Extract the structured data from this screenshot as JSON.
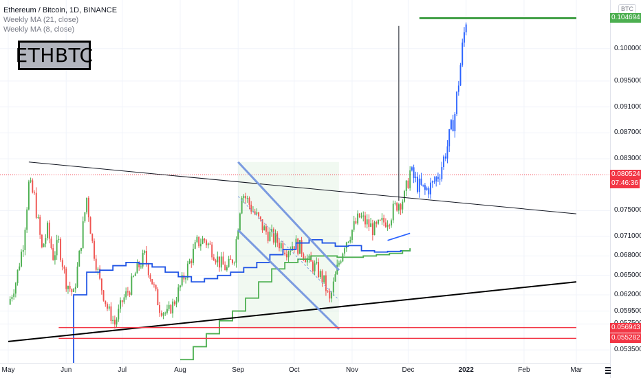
{
  "legend": {
    "title": "Ethereum / Bitcoin, 1D, BINANCE",
    "ma21": "Weekly MA (21, close)",
    "ma8": "Weekly MA (8, close)"
  },
  "symbol_label": "ETHBTC",
  "unit_label": "BTC",
  "price_tags": {
    "top": {
      "value": "0.104694",
      "color": "#4caf50"
    },
    "current": {
      "value": "0.080524",
      "color": "#f23645"
    },
    "countdown": "07:46:36",
    "support1": {
      "value": "0.056943",
      "color": "#f23645"
    },
    "support2": {
      "value": "0.055282",
      "color": "#f23645"
    }
  },
  "colors": {
    "up": "#26a69a",
    "up_candle": "#4caf50",
    "down": "#ef5350",
    "ma21": "#1e53e5",
    "ma8": "#4caf50",
    "channel": "#7b9be0",
    "trendline": "#000000",
    "rect": "#4caf50",
    "projection": "#2962ff"
  },
  "chart_data": {
    "type": "candlestick",
    "title": "Ethereum / Bitcoin, 1D, BINANCE",
    "ylim": [
      0.0515,
      0.1075
    ],
    "y_ticks": [
      "0.100000",
      "0.095000",
      "0.091000",
      "0.087000",
      "0.083000",
      "0.075000",
      "0.071000",
      "0.068000",
      "0.065000",
      "0.062000",
      "0.059500",
      "0.057500",
      "0.053500"
    ],
    "x_ticks": [
      {
        "label": "May",
        "bold": false
      },
      {
        "label": "Jun",
        "bold": false
      },
      {
        "label": "Jul",
        "bold": false
      },
      {
        "label": "Aug",
        "bold": false
      },
      {
        "label": "Sep",
        "bold": false
      },
      {
        "label": "Oct",
        "bold": false
      },
      {
        "label": "Nov",
        "bold": false
      },
      {
        "label": "Dec",
        "bold": false
      },
      {
        "label": "2022",
        "bold": true
      },
      {
        "label": "Feb",
        "bold": false
      },
      {
        "label": "Mar",
        "bold": false
      }
    ],
    "x_range": [
      "2021-05-01",
      "2022-03-01"
    ],
    "close_path": [
      [
        "2021-05-01",
        0.0605
      ],
      [
        "2021-05-05",
        0.064
      ],
      [
        "2021-05-09",
        0.07
      ],
      [
        "2021-05-12",
        0.079
      ],
      [
        "2021-05-15",
        0.077
      ],
      [
        "2021-05-19",
        0.069
      ],
      [
        "2021-05-22",
        0.072
      ],
      [
        "2021-05-25",
        0.068
      ],
      [
        "2021-05-28",
        0.07
      ],
      [
        "2021-06-01",
        0.064
      ],
      [
        "2021-06-05",
        0.062
      ],
      [
        "2021-06-08",
        0.068
      ],
      [
        "2021-06-12",
        0.077
      ],
      [
        "2021-06-15",
        0.07
      ],
      [
        "2021-06-19",
        0.064
      ],
      [
        "2021-06-23",
        0.06
      ],
      [
        "2021-06-27",
        0.0575
      ],
      [
        "2021-07-01",
        0.061
      ],
      [
        "2021-07-05",
        0.063
      ],
      [
        "2021-07-09",
        0.066
      ],
      [
        "2021-07-13",
        0.068
      ],
      [
        "2021-07-17",
        0.064
      ],
      [
        "2021-07-21",
        0.06
      ],
      [
        "2021-07-25",
        0.059
      ],
      [
        "2021-07-29",
        0.061
      ],
      [
        "2021-08-02",
        0.064
      ],
      [
        "2021-08-06",
        0.067
      ],
      [
        "2021-08-10",
        0.07
      ],
      [
        "2021-08-14",
        0.0705
      ],
      [
        "2021-08-18",
        0.069
      ],
      [
        "2021-08-22",
        0.067
      ],
      [
        "2021-08-26",
        0.066
      ],
      [
        "2021-08-30",
        0.068
      ],
      [
        "2021-09-03",
        0.078
      ],
      [
        "2021-09-07",
        0.076
      ],
      [
        "2021-09-11",
        0.074
      ],
      [
        "2021-09-15",
        0.072
      ],
      [
        "2021-09-19",
        0.071
      ],
      [
        "2021-09-23",
        0.07
      ],
      [
        "2021-09-27",
        0.069
      ],
      [
        "2021-10-01",
        0.07
      ],
      [
        "2021-10-05",
        0.069
      ],
      [
        "2021-10-09",
        0.067
      ],
      [
        "2021-10-13",
        0.066
      ],
      [
        "2021-10-17",
        0.064
      ],
      [
        "2021-10-20",
        0.061
      ],
      [
        "2021-10-24",
        0.066
      ],
      [
        "2021-10-28",
        0.07
      ],
      [
        "2021-11-01",
        0.072
      ],
      [
        "2021-11-05",
        0.074
      ],
      [
        "2021-11-09",
        0.073
      ],
      [
        "2021-11-13",
        0.072
      ],
      [
        "2021-11-17",
        0.073
      ],
      [
        "2021-11-21",
        0.074
      ],
      [
        "2021-11-25",
        0.076
      ],
      [
        "2021-11-29",
        0.077
      ],
      [
        "2021-12-02",
        0.081
      ],
      [
        "2021-12-06",
        0.079
      ],
      [
        "2021-12-10",
        0.078
      ],
      [
        "2021-12-14",
        0.079
      ],
      [
        "2021-12-18",
        0.081
      ],
      [
        "2021-12-22",
        0.085
      ],
      [
        "2021-12-26",
        0.09
      ],
      [
        "2021-12-30",
        0.1
      ],
      [
        "2022-01-01",
        0.1047
      ]
    ],
    "series": [
      {
        "name": "Weekly MA (21, close)",
        "values": [
          [
            "2021-05-28",
            0.0505
          ],
          [
            "2021-06-05",
            0.062
          ],
          [
            "2021-06-12",
            0.0655
          ],
          [
            "2021-06-19",
            0.0658
          ],
          [
            "2021-06-26",
            0.0665
          ],
          [
            "2021-07-03",
            0.067
          ],
          [
            "2021-07-10",
            0.0668
          ],
          [
            "2021-07-17",
            0.0663
          ],
          [
            "2021-07-24",
            0.0655
          ],
          [
            "2021-07-31",
            0.0648
          ],
          [
            "2021-08-07",
            0.064
          ],
          [
            "2021-08-14",
            0.0645
          ],
          [
            "2021-08-21",
            0.065
          ],
          [
            "2021-08-28",
            0.0655
          ],
          [
            "2021-09-04",
            0.0662
          ],
          [
            "2021-09-11",
            0.067
          ],
          [
            "2021-09-18",
            0.0682
          ],
          [
            "2021-09-25",
            0.069
          ],
          [
            "2021-10-02",
            0.07
          ],
          [
            "2021-10-09",
            0.0705
          ],
          [
            "2021-10-16",
            0.07
          ],
          [
            "2021-10-23",
            0.0695
          ],
          [
            "2021-10-30",
            0.0696
          ],
          [
            "2021-11-06",
            0.0688
          ],
          [
            "2021-11-13",
            0.0686
          ],
          [
            "2021-11-20",
            0.0687
          ],
          [
            "2021-11-27",
            0.0688
          ],
          [
            "2021-12-02",
            0.069
          ]
        ]
      },
      {
        "name": "Weekly MA (8, close)",
        "values": [
          [
            "2021-08-01",
            0.052
          ],
          [
            "2021-08-08",
            0.054
          ],
          [
            "2021-08-15",
            0.056
          ],
          [
            "2021-08-22",
            0.058
          ],
          [
            "2021-08-29",
            0.0595
          ],
          [
            "2021-09-05",
            0.0615
          ],
          [
            "2021-09-12",
            0.064
          ],
          [
            "2021-09-19",
            0.066
          ],
          [
            "2021-09-26",
            0.067
          ],
          [
            "2021-10-03",
            0.0675
          ],
          [
            "2021-10-10",
            0.068
          ],
          [
            "2021-10-17",
            0.068
          ],
          [
            "2021-10-24",
            0.0678
          ],
          [
            "2021-10-31",
            0.0678
          ],
          [
            "2021-11-07",
            0.068
          ],
          [
            "2021-11-14",
            0.0682
          ],
          [
            "2021-11-21",
            0.0684
          ],
          [
            "2021-11-28",
            0.0688
          ],
          [
            "2021-12-02",
            0.0692
          ]
        ]
      }
    ],
    "projection_blue": [
      [
        "2021-11-20",
        0.0704
      ],
      [
        "2021-12-02",
        0.0715
      ]
    ],
    "annotations": {
      "descending_trendline": [
        [
          "2021-05-12",
          0.0825
        ],
        [
          "2022-03-01",
          0.0745
        ]
      ],
      "ascending_trendline": [
        [
          "2021-05-01",
          0.0548
        ],
        [
          "2022-03-01",
          0.064
        ]
      ],
      "channel_upper": [
        [
          "2021-09-01",
          0.0825
        ],
        [
          "2021-10-25",
          0.0658
        ]
      ],
      "channel_lower": [
        [
          "2021-09-01",
          0.072
        ],
        [
          "2021-10-25",
          0.0567
        ]
      ],
      "channel_mid": [
        [
          "2021-09-01",
          0.0772
        ],
        [
          "2021-10-25",
          0.0612
        ]
      ],
      "channel_box": [
        [
          "2021-09-01",
          0.0825
        ],
        [
          "2021-10-25",
          0.0567
        ]
      ],
      "horizontal_top": {
        "value": 0.104694,
        "from": "2021-12-07",
        "to": "2022-03-01"
      },
      "horizontal_current": {
        "value": 0.080524
      },
      "horizontal_s1": {
        "value": 0.056943,
        "from": "2021-05-28",
        "to": "2022-03-01"
      },
      "horizontal_s2": {
        "value": 0.055282,
        "from": "2021-05-28",
        "to": "2022-03-01"
      },
      "vertical_line": {
        "date": "2021-11-26",
        "from": 0.0765,
        "to": 0.1035
      }
    }
  }
}
